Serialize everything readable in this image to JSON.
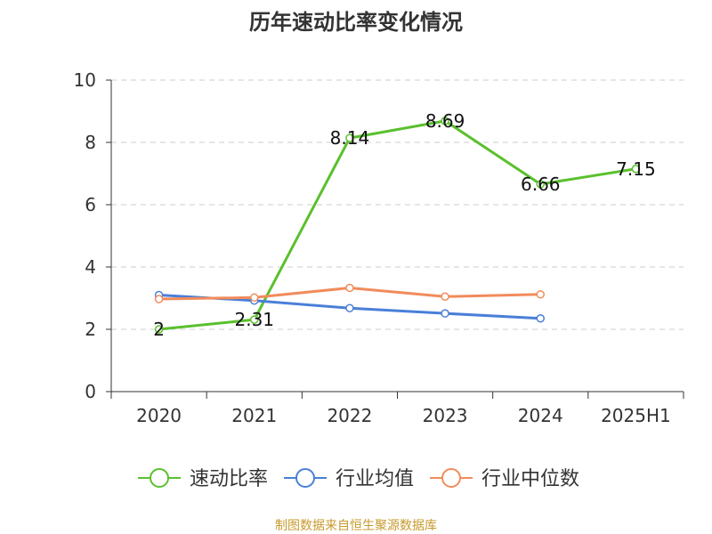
{
  "chart_data": {
    "type": "line",
    "title": "历年速动比率变化情况",
    "source_note": "制图数据来自恒生聚源数据库",
    "categories": [
      "2020",
      "2021",
      "2022",
      "2023",
      "2024",
      "2025H1"
    ],
    "ylim": [
      0,
      10
    ],
    "yticks": [
      0,
      2,
      4,
      6,
      8,
      10
    ],
    "grid": true,
    "legend_position": "bottom",
    "series": [
      {
        "name": "速动比率",
        "color": "#5ac02d",
        "values": [
          2,
          2.31,
          8.14,
          8.69,
          6.66,
          7.15
        ],
        "labels": [
          "2",
          "2.31",
          "8.14",
          "8.69",
          "6.66",
          "7.15"
        ]
      },
      {
        "name": "行业均值",
        "color": "#4a7fd8",
        "values": [
          3.1,
          2.92,
          2.68,
          2.51,
          2.35,
          null
        ],
        "labels": []
      },
      {
        "name": "行业中位数",
        "color": "#f28b5b",
        "values": [
          2.97,
          3.02,
          3.33,
          3.05,
          3.12,
          null
        ],
        "labels": []
      }
    ]
  }
}
